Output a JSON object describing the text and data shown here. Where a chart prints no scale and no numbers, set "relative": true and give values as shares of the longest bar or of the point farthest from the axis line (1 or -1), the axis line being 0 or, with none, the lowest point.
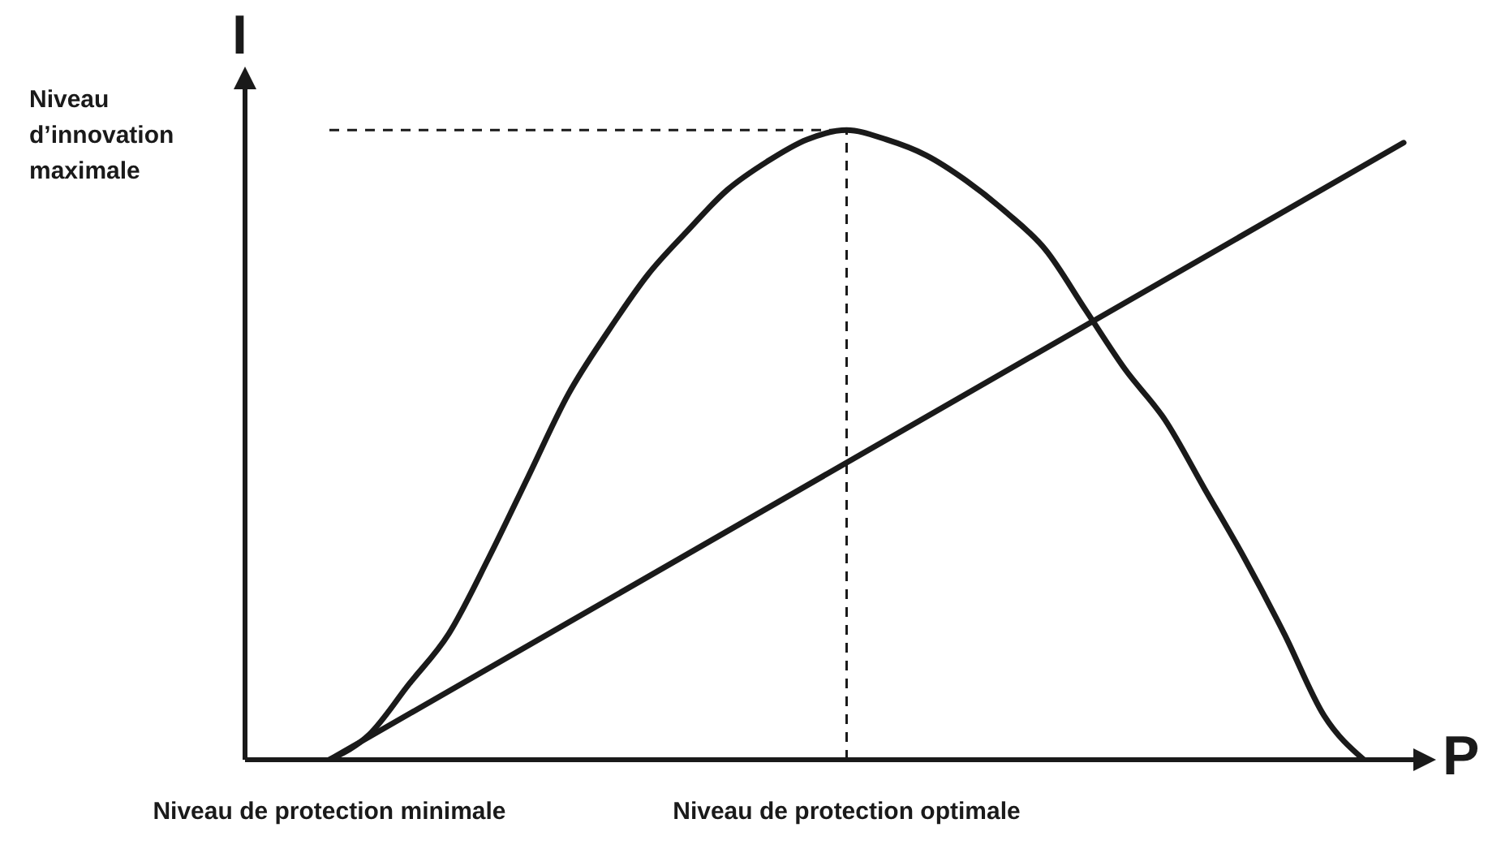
{
  "chart_data": {
    "type": "line",
    "relative": true,
    "xlabel": "P",
    "ylabel": "I",
    "categories": [
      "Niveau de protection minimale",
      null,
      null,
      null,
      null,
      null,
      null,
      null,
      null,
      null,
      null,
      null,
      null,
      "Niveau de protection optimale",
      null,
      null,
      null,
      null,
      null,
      null,
      null,
      null,
      null,
      null,
      null,
      null,
      null,
      null
    ],
    "series": [
      {
        "color": "#1a1a1a",
        "values": [
          0,
          0.04,
          0.12,
          0.2,
          0.32,
          0.45,
          0.58,
          0.68,
          0.77,
          0.84,
          0.905,
          0.95,
          0.985,
          1,
          0.985,
          0.96,
          0.92,
          0.87,
          0.81,
          0.715,
          0.62,
          0.54,
          0.43,
          0.32,
          0.2,
          0.07,
          0,
          null
        ]
      },
      {
        "color": "#1a1a1a",
        "values": [
          0,
          null,
          null,
          null,
          null,
          null,
          null,
          null,
          null,
          null,
          null,
          null,
          null,
          null,
          null,
          null,
          null,
          null,
          null,
          null,
          null,
          null,
          null,
          null,
          null,
          null,
          null,
          0.98
        ]
      }
    ],
    "ref_lines": [
      {
        "axis": "y",
        "value": 1,
        "label": "Niveau d’innovation maximale",
        "line_style": "dashed",
        "color": "#1a1a1a"
      },
      {
        "axis": "x",
        "value": "Niveau de protection optimale",
        "line_style": "dashed",
        "color": "#1a1a1a"
      }
    ]
  }
}
